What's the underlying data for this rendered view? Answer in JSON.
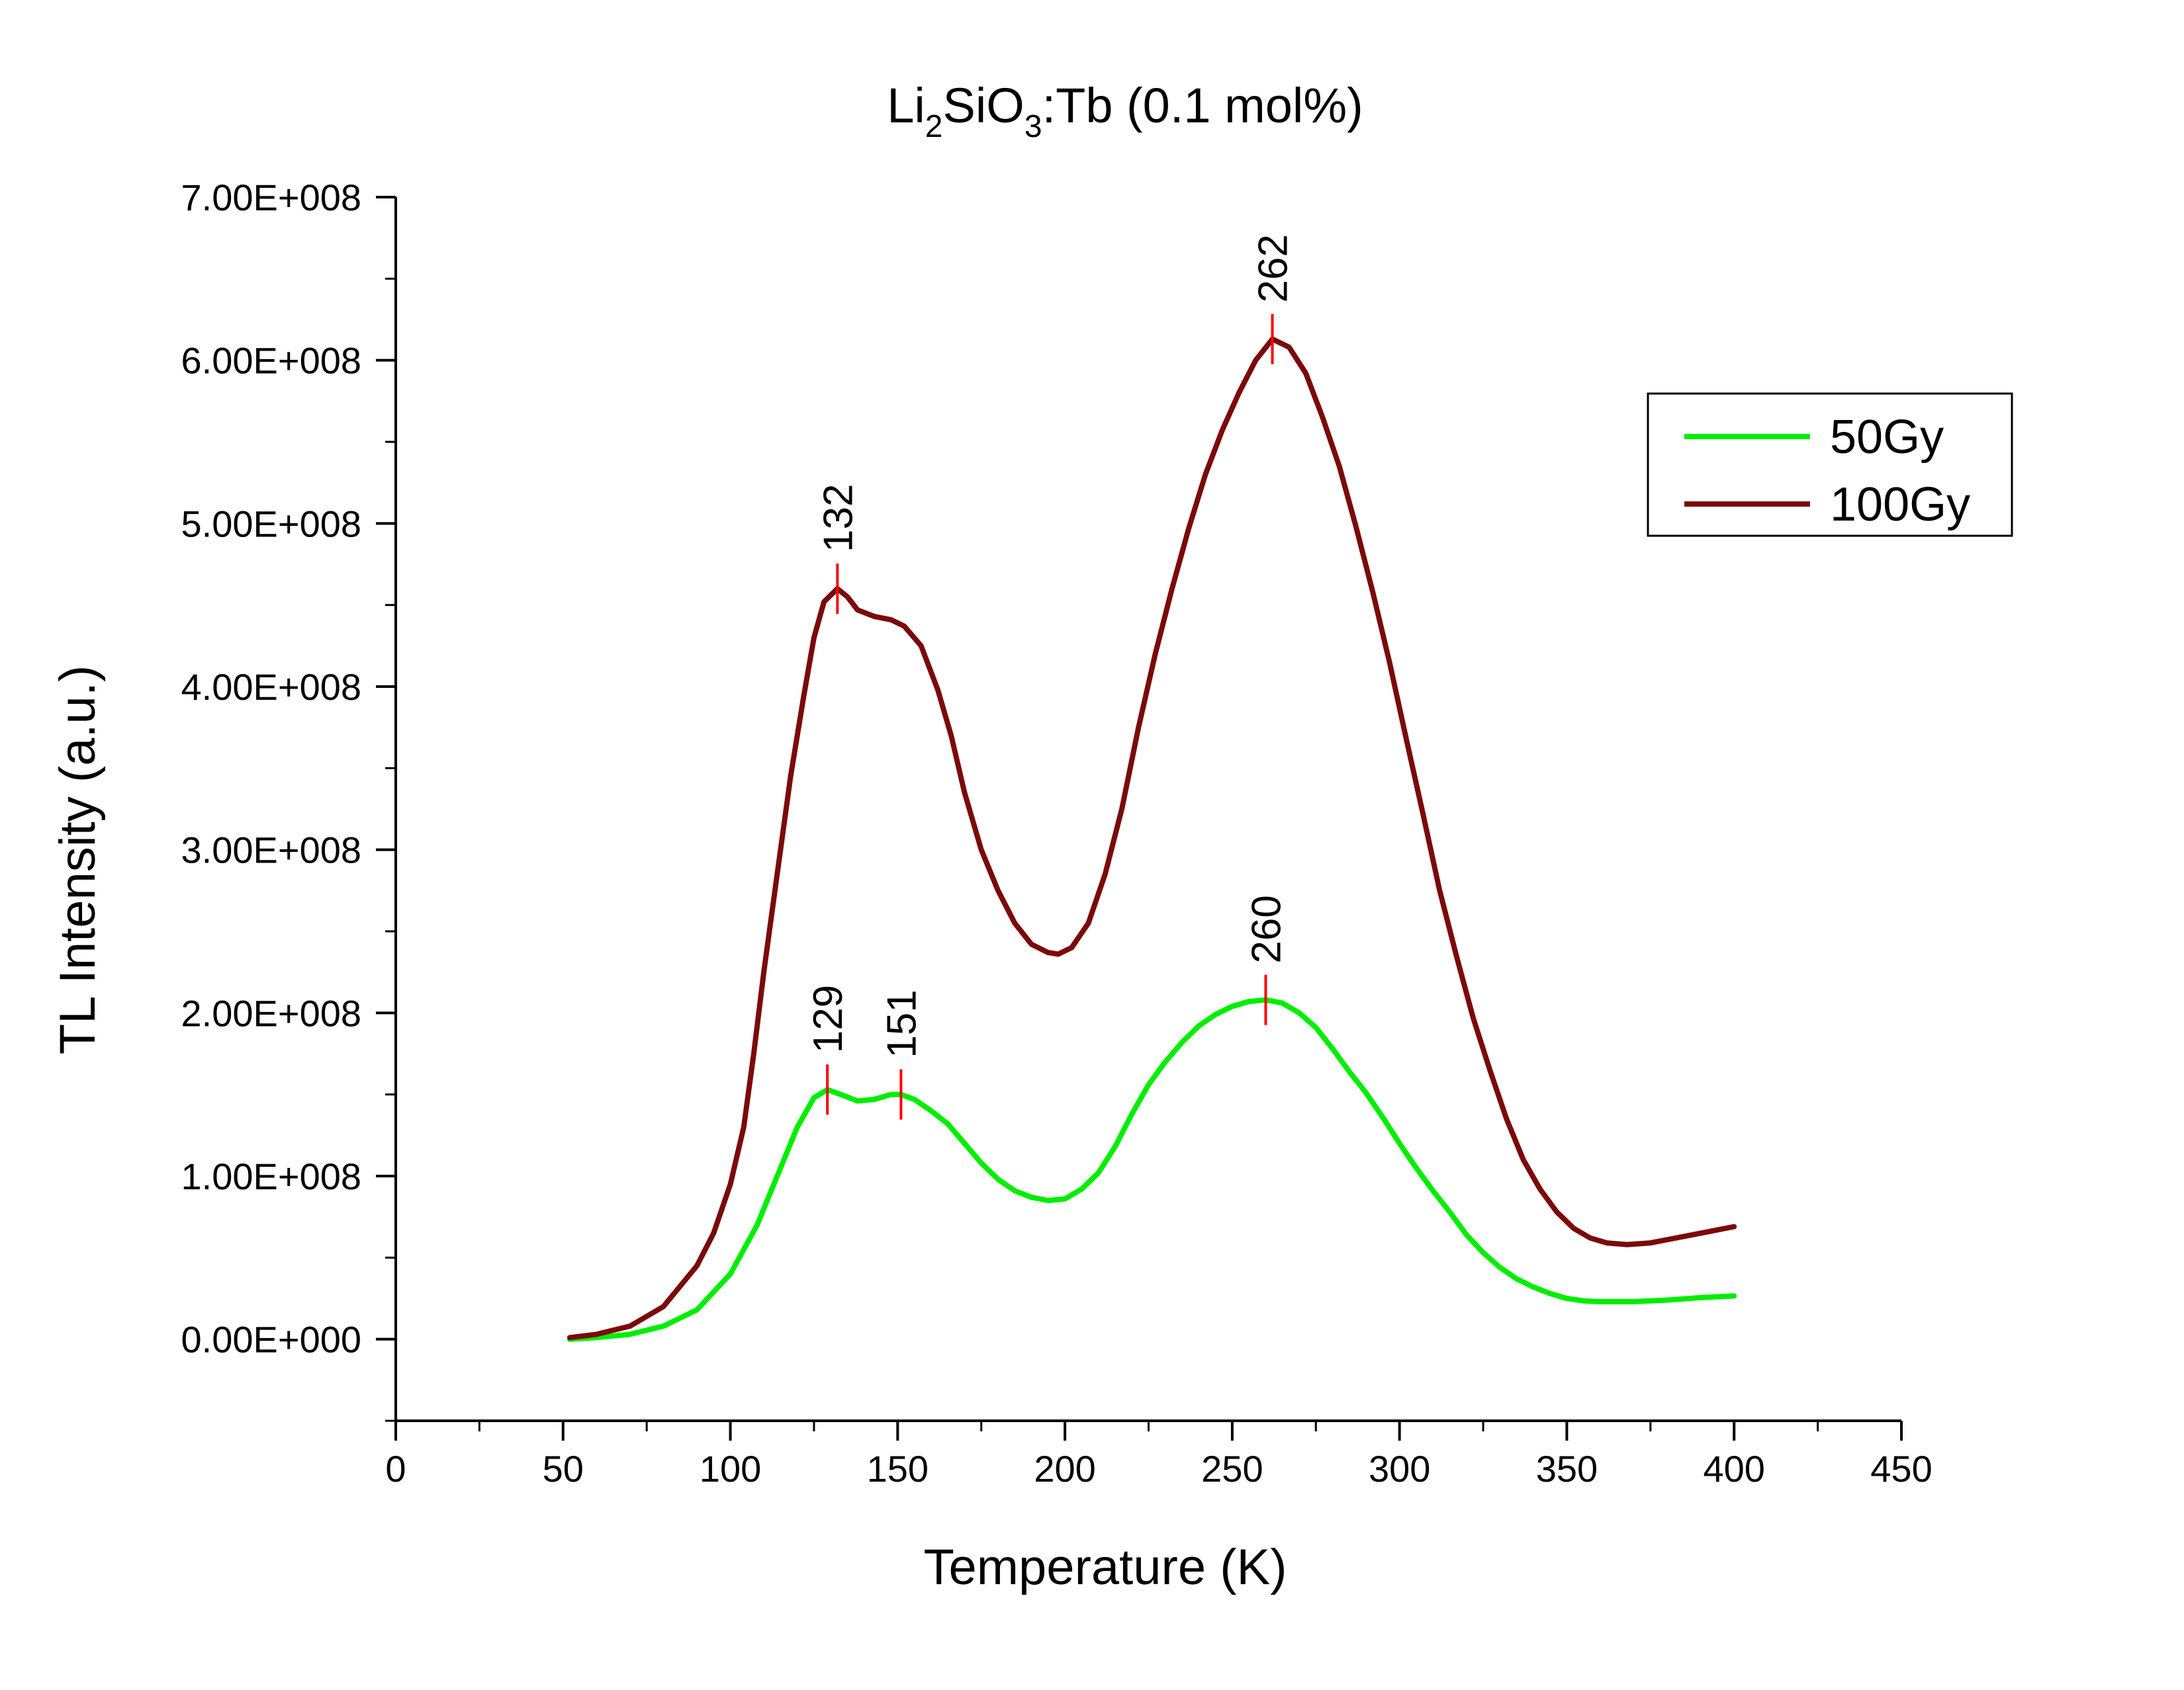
{
  "chart_data": {
    "type": "line",
    "title": {
      "main": "Li",
      "sub1": "2",
      "mid": "SiO",
      "sub2": "3",
      "rest": ":Tb (0.1 mol%)"
    },
    "xlabel": "Temperature (K)",
    "ylabel": "TL Intensity (a.u.)",
    "xlim": [
      0,
      450
    ],
    "ylim": [
      -50000000,
      700000000
    ],
    "x_ticks": [
      0,
      50,
      100,
      150,
      200,
      250,
      300,
      350,
      400,
      450
    ],
    "x_tick_labels": [
      "0",
      "50",
      "100",
      "150",
      "200",
      "250",
      "300",
      "350",
      "400",
      "450"
    ],
    "y_ticks": [
      0,
      100000000,
      200000000,
      300000000,
      400000000,
      500000000,
      600000000,
      700000000
    ],
    "y_tick_labels": [
      "0.00E+000",
      "1.00E+008",
      "2.00E+008",
      "3.00E+008",
      "4.00E+008",
      "5.00E+008",
      "6.00E+008",
      "7.00E+008"
    ],
    "grid": false,
    "legend": {
      "position": "top-right"
    },
    "series": [
      {
        "name": "50Gy",
        "color": "#00ee00",
        "points": [
          [
            52,
            0
          ],
          [
            60,
            1000000
          ],
          [
            70,
            3000000
          ],
          [
            80,
            8000000
          ],
          [
            90,
            18000000
          ],
          [
            100,
            40000000
          ],
          [
            108,
            70000000
          ],
          [
            115,
            105000000
          ],
          [
            120,
            130000000
          ],
          [
            125,
            148000000
          ],
          [
            129,
            153000000
          ],
          [
            133,
            150000000
          ],
          [
            138,
            146000000
          ],
          [
            143,
            147000000
          ],
          [
            148,
            150000000
          ],
          [
            151,
            150000000
          ],
          [
            155,
            147000000
          ],
          [
            160,
            140000000
          ],
          [
            165,
            132000000
          ],
          [
            170,
            120000000
          ],
          [
            175,
            108000000
          ],
          [
            180,
            98000000
          ],
          [
            185,
            91000000
          ],
          [
            190,
            87000000
          ],
          [
            195,
            85000000
          ],
          [
            200,
            86000000
          ],
          [
            205,
            92000000
          ],
          [
            210,
            102000000
          ],
          [
            215,
            118000000
          ],
          [
            220,
            138000000
          ],
          [
            225,
            156000000
          ],
          [
            230,
            170000000
          ],
          [
            235,
            182000000
          ],
          [
            240,
            192000000
          ],
          [
            245,
            199000000
          ],
          [
            250,
            204000000
          ],
          [
            255,
            207000000
          ],
          [
            260,
            208000000
          ],
          [
            265,
            206000000
          ],
          [
            270,
            200000000
          ],
          [
            275,
            191000000
          ],
          [
            280,
            178000000
          ],
          [
            285,
            164000000
          ],
          [
            290,
            151000000
          ],
          [
            295,
            136000000
          ],
          [
            300,
            120000000
          ],
          [
            305,
            105000000
          ],
          [
            310,
            91000000
          ],
          [
            315,
            78000000
          ],
          [
            320,
            64000000
          ],
          [
            325,
            53000000
          ],
          [
            330,
            44000000
          ],
          [
            335,
            37000000
          ],
          [
            340,
            32000000
          ],
          [
            345,
            28000000
          ],
          [
            350,
            25000000
          ],
          [
            355,
            23500000
          ],
          [
            360,
            23000000
          ],
          [
            370,
            23000000
          ],
          [
            380,
            24000000
          ],
          [
            390,
            25500000
          ],
          [
            400,
            26500000
          ]
        ]
      },
      {
        "name": "100Gy",
        "color": "#7b0a0a",
        "points": [
          [
            52,
            1000000
          ],
          [
            60,
            3000000
          ],
          [
            70,
            8000000
          ],
          [
            80,
            20000000
          ],
          [
            90,
            45000000
          ],
          [
            95,
            65000000
          ],
          [
            100,
            95000000
          ],
          [
            104,
            130000000
          ],
          [
            107,
            175000000
          ],
          [
            110,
            225000000
          ],
          [
            114,
            285000000
          ],
          [
            118,
            345000000
          ],
          [
            122,
            395000000
          ],
          [
            125,
            430000000
          ],
          [
            128,
            452000000
          ],
          [
            132,
            460000000
          ],
          [
            135,
            455000000
          ],
          [
            138,
            447000000
          ],
          [
            143,
            443000000
          ],
          [
            148,
            441000000
          ],
          [
            152,
            437000000
          ],
          [
            157,
            425000000
          ],
          [
            162,
            398000000
          ],
          [
            166,
            370000000
          ],
          [
            170,
            335000000
          ],
          [
            175,
            300000000
          ],
          [
            180,
            275000000
          ],
          [
            185,
            255000000
          ],
          [
            190,
            242000000
          ],
          [
            195,
            237000000
          ],
          [
            198,
            236000000
          ],
          [
            202,
            240000000
          ],
          [
            207,
            255000000
          ],
          [
            212,
            285000000
          ],
          [
            217,
            325000000
          ],
          [
            222,
            375000000
          ],
          [
            227,
            420000000
          ],
          [
            232,
            460000000
          ],
          [
            237,
            497000000
          ],
          [
            242,
            530000000
          ],
          [
            247,
            557000000
          ],
          [
            252,
            580000000
          ],
          [
            257,
            600000000
          ],
          [
            262,
            613000000
          ],
          [
            267,
            608000000
          ],
          [
            272,
            592000000
          ],
          [
            277,
            565000000
          ],
          [
            282,
            535000000
          ],
          [
            287,
            498000000
          ],
          [
            292,
            458000000
          ],
          [
            297,
            415000000
          ],
          [
            302,
            368000000
          ],
          [
            307,
            322000000
          ],
          [
            312,
            275000000
          ],
          [
            317,
            235000000
          ],
          [
            322,
            197000000
          ],
          [
            327,
            165000000
          ],
          [
            332,
            135000000
          ],
          [
            337,
            110000000
          ],
          [
            342,
            92000000
          ],
          [
            347,
            78000000
          ],
          [
            352,
            68000000
          ],
          [
            357,
            62000000
          ],
          [
            362,
            59000000
          ],
          [
            368,
            58000000
          ],
          [
            375,
            59000000
          ],
          [
            385,
            63000000
          ],
          [
            395,
            67000000
          ],
          [
            400,
            69000000
          ]
        ]
      }
    ],
    "peak_markers": [
      {
        "label": "129",
        "x": 129,
        "y": 153000000,
        "color": "#ff0000"
      },
      {
        "label": "151",
        "x": 151,
        "y": 150000000,
        "color": "#ff0000"
      },
      {
        "label": "260",
        "x": 260,
        "y": 208000000,
        "color": "#ff0000"
      },
      {
        "label": "132",
        "x": 132,
        "y": 460000000,
        "color": "#ff0000"
      },
      {
        "label": "262",
        "x": 262,
        "y": 613000000,
        "color": "#ff0000"
      }
    ]
  }
}
